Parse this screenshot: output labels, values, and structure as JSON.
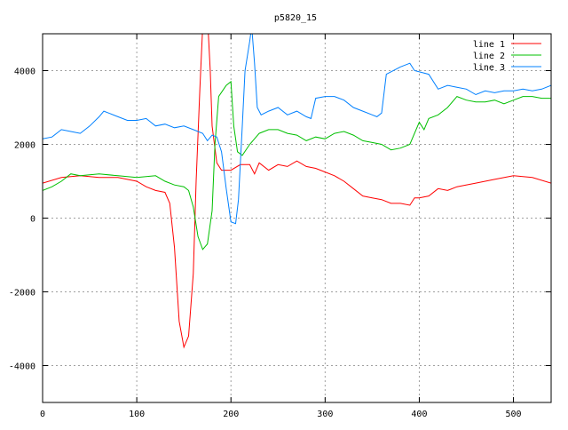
{
  "chart_data": {
    "type": "line",
    "title": "p5820_15",
    "xlabel": "",
    "ylabel": "",
    "xlim": [
      0,
      540
    ],
    "ylim": [
      -5000,
      5000
    ],
    "xticks": [
      0,
      100,
      200,
      300,
      400,
      500
    ],
    "yticks": [
      -4000,
      -2000,
      0,
      2000,
      4000
    ],
    "grid": true,
    "legend_position": "top-right",
    "series": [
      {
        "name": "line 1",
        "color": "#ff0000",
        "x": [
          0,
          20,
          40,
          60,
          80,
          100,
          110,
          120,
          130,
          135,
          140,
          145,
          150,
          155,
          160,
          163,
          167,
          170,
          175,
          178,
          180,
          185,
          190,
          200,
          210,
          220,
          225,
          230,
          240,
          250,
          260,
          270,
          280,
          290,
          300,
          310,
          320,
          330,
          340,
          350,
          360,
          370,
          380,
          390,
          395,
          400,
          410,
          420,
          430,
          440,
          460,
          480,
          500,
          520,
          540
        ],
        "y": [
          950,
          1100,
          1150,
          1100,
          1100,
          1000,
          850,
          750,
          700,
          400,
          -800,
          -2800,
          -3500,
          -3200,
          -1500,
          1000,
          3500,
          5200,
          5500,
          4000,
          2500,
          1500,
          1300,
          1300,
          1450,
          1450,
          1200,
          1500,
          1300,
          1450,
          1400,
          1550,
          1400,
          1350,
          1250,
          1150,
          1000,
          800,
          600,
          550,
          500,
          400,
          400,
          350,
          550,
          550,
          600,
          800,
          750,
          850,
          950,
          1050,
          1150,
          1100,
          950
        ]
      },
      {
        "name": "line 2",
        "color": "#00c000",
        "x": [
          0,
          10,
          20,
          30,
          40,
          60,
          80,
          100,
          120,
          130,
          140,
          150,
          155,
          160,
          165,
          170,
          175,
          180,
          183,
          187,
          195,
          200,
          203,
          207,
          212,
          220,
          230,
          240,
          250,
          260,
          270,
          280,
          290,
          300,
          310,
          320,
          330,
          340,
          350,
          360,
          370,
          380,
          390,
          400,
          405,
          410,
          420,
          430,
          440,
          450,
          460,
          470,
          480,
          490,
          500,
          510,
          520,
          530,
          540
        ],
        "y": [
          750,
          850,
          1000,
          1200,
          1150,
          1200,
          1150,
          1100,
          1150,
          1000,
          900,
          850,
          750,
          300,
          -500,
          -850,
          -700,
          200,
          2000,
          3300,
          3600,
          3700,
          2500,
          1800,
          1700,
          2000,
          2300,
          2400,
          2400,
          2300,
          2250,
          2100,
          2200,
          2150,
          2300,
          2350,
          2250,
          2100,
          2050,
          2000,
          1850,
          1900,
          2000,
          2600,
          2400,
          2700,
          2800,
          3000,
          3300,
          3200,
          3150,
          3150,
          3200,
          3100,
          3200,
          3300,
          3300,
          3250,
          3250
        ]
      },
      {
        "name": "line 3",
        "color": "#0080ff",
        "x": [
          0,
          10,
          20,
          30,
          40,
          50,
          60,
          65,
          70,
          80,
          90,
          100,
          110,
          120,
          130,
          140,
          150,
          160,
          170,
          175,
          180,
          185,
          190,
          195,
          200,
          205,
          208,
          212,
          215,
          220,
          222,
          225,
          228,
          232,
          240,
          250,
          260,
          270,
          280,
          285,
          290,
          300,
          310,
          320,
          330,
          340,
          350,
          355,
          360,
          365,
          380,
          390,
          395,
          410,
          420,
          430,
          440,
          450,
          460,
          470,
          480,
          490,
          500,
          510,
          520,
          530,
          540
        ],
        "y": [
          2150,
          2200,
          2400,
          2350,
          2300,
          2500,
          2750,
          2900,
          2850,
          2750,
          2650,
          2650,
          2700,
          2500,
          2550,
          2450,
          2500,
          2400,
          2300,
          2100,
          2250,
          2200,
          1800,
          800,
          -100,
          -150,
          500,
          2500,
          4000,
          4800,
          5200,
          4200,
          3000,
          2800,
          2900,
          3000,
          2800,
          2900,
          2750,
          2700,
          3250,
          3300,
          3300,
          3200,
          3000,
          2900,
          2800,
          2750,
          2850,
          3900,
          4100,
          4200,
          4000,
          3900,
          3500,
          3600,
          3550,
          3500,
          3350,
          3450,
          3400,
          3450,
          3450,
          3500,
          3450,
          3500,
          3600
        ]
      }
    ]
  }
}
